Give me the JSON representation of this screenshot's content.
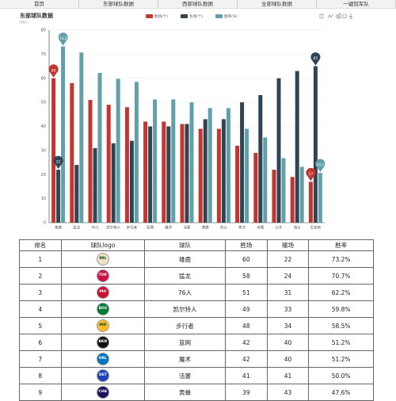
{
  "nav": [
    "首页",
    "东部球队数据",
    "西部球队数据",
    "全部球队数据",
    "一键冠军队"
  ],
  "chart_data": {
    "type": "bar",
    "title": "东部球队数据",
    "subtitle": "NBA",
    "categories": [
      "雄鹿",
      "猛龙",
      "76人",
      "凯尔特人",
      "步行者",
      "篮网",
      "魔术",
      "活塞",
      "黄蜂",
      "热火",
      "奇才",
      "老鹰",
      "公牛",
      "骑士",
      "尼克斯"
    ],
    "series": [
      {
        "name": "胜场(个)",
        "color": "#c23531",
        "values": [
          60,
          58,
          51,
          49,
          48,
          42,
          42,
          41,
          39,
          39,
          32,
          29,
          22,
          19,
          17
        ]
      },
      {
        "name": "负场(个)",
        "color": "#2f4554",
        "values": [
          22,
          24,
          31,
          33,
          34,
          40,
          40,
          41,
          43,
          43,
          50,
          53,
          60,
          63,
          65
        ]
      },
      {
        "name": "胜率(%)",
        "color": "#61a0a8",
        "values": [
          73.2,
          70.7,
          62.2,
          59.8,
          58.5,
          51.2,
          51.2,
          50.0,
          47.6,
          47.6,
          39.0,
          35.4,
          26.8,
          23.2,
          20.7
        ]
      }
    ],
    "ylim": [
      0,
      80
    ],
    "yticks": [
      0,
      10,
      20,
      30,
      40,
      50,
      60,
      70,
      80
    ],
    "grid": true,
    "mark_points": true
  },
  "table": {
    "headers": [
      "排名",
      "球队logo",
      "球队",
      "胜场",
      "输场",
      "胜率"
    ],
    "rows": [
      {
        "rank": 1,
        "logo": "MIL",
        "logo_color": "#eee1c6",
        "team": "雄鹿",
        "wins": 60,
        "losses": 22,
        "rate": "73.2%"
      },
      {
        "rank": 2,
        "logo": "TOR",
        "logo_color": "#ce1141",
        "team": "猛龙",
        "wins": 58,
        "losses": 24,
        "rate": "70.7%"
      },
      {
        "rank": 3,
        "logo": "PHI",
        "logo_color": "#c8102e",
        "team": "76人",
        "wins": 51,
        "losses": 31,
        "rate": "62.2%"
      },
      {
        "rank": 4,
        "logo": "BOS",
        "logo_color": "#007a33",
        "team": "凯尔特人",
        "wins": 49,
        "losses": 33,
        "rate": "59.8%"
      },
      {
        "rank": 5,
        "logo": "IND",
        "logo_color": "#fdbb30",
        "team": "步行者",
        "wins": 48,
        "losses": 34,
        "rate": "58.5%"
      },
      {
        "rank": 6,
        "logo": "BKN",
        "logo_color": "#111111",
        "team": "篮网",
        "wins": 42,
        "losses": 40,
        "rate": "51.2%"
      },
      {
        "rank": 7,
        "logo": "ORL",
        "logo_color": "#0077c0",
        "team": "魔术",
        "wins": 42,
        "losses": 40,
        "rate": "51.2%"
      },
      {
        "rank": 8,
        "logo": "DET",
        "logo_color": "#1d42ba",
        "team": "活塞",
        "wins": 41,
        "losses": 41,
        "rate": "50.0%"
      },
      {
        "rank": 9,
        "logo": "CHA",
        "logo_color": "#1d1160",
        "team": "黄蜂",
        "wins": 39,
        "losses": 43,
        "rate": "47.6%"
      }
    ]
  }
}
